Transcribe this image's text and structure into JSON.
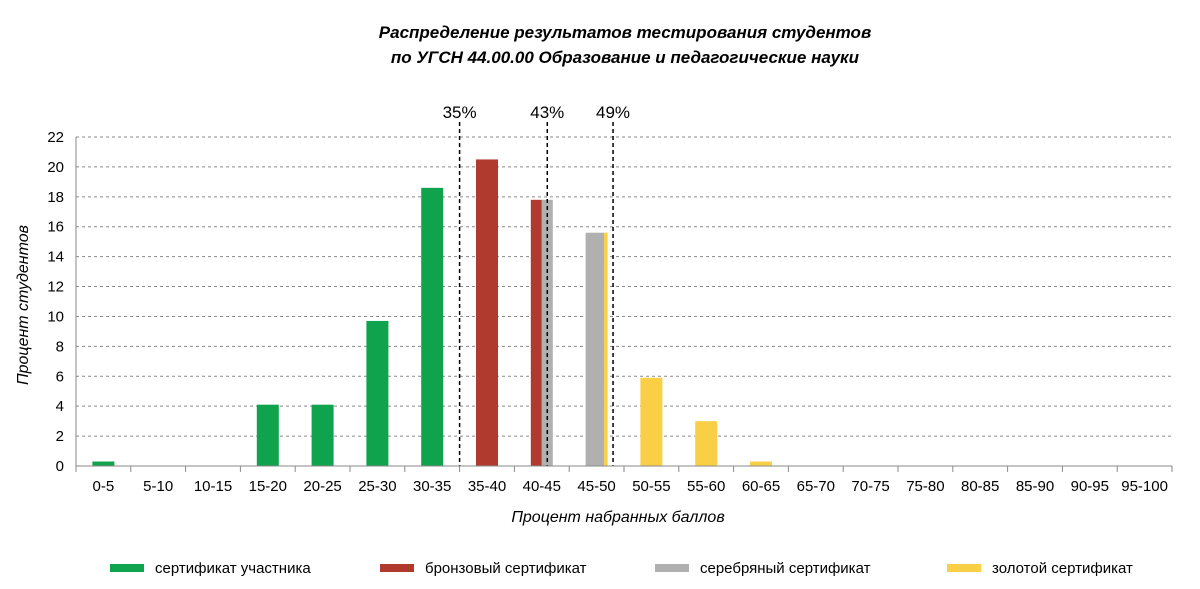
{
  "chart_data": {
    "type": "bar",
    "title_line1": "Распределение результатов тестирования студентов",
    "title_line2": "по УГСН 44.00.00 Образование и педагогические науки",
    "xlabel": "Процент набранных баллов",
    "ylabel": "Процент студентов",
    "ylim": [
      0,
      22
    ],
    "yticks": [
      "0",
      "2",
      "4",
      "6",
      "8",
      "10",
      "12",
      "14",
      "16",
      "18",
      "20",
      "22"
    ],
    "grid": "horizontal dashed",
    "categories": [
      "0-5",
      "5-10",
      "10-15",
      "15-20",
      "20-25",
      "25-30",
      "30-35",
      "35-40",
      "40-45",
      "45-50",
      "50-55",
      "55-60",
      "60-65",
      "65-70",
      "70-75",
      "75-80",
      "80-85",
      "85-90",
      "90-95",
      "95-100"
    ],
    "bars": [
      {
        "value": 0.3,
        "segments": [
          {
            "series": 0,
            "frac": 1
          }
        ]
      },
      {
        "value": 0,
        "segments": []
      },
      {
        "value": 0,
        "segments": []
      },
      {
        "value": 4.1,
        "segments": [
          {
            "series": 0,
            "frac": 1
          }
        ]
      },
      {
        "value": 4.1,
        "segments": [
          {
            "series": 0,
            "frac": 1
          }
        ]
      },
      {
        "value": 9.7,
        "segments": [
          {
            "series": 0,
            "frac": 1
          }
        ]
      },
      {
        "value": 18.6,
        "segments": [
          {
            "series": 0,
            "frac": 1
          }
        ]
      },
      {
        "value": 20.5,
        "segments": [
          {
            "series": 1,
            "frac": 1
          }
        ]
      },
      {
        "value": 17.8,
        "segments": [
          {
            "series": 1,
            "frac": 0.5
          },
          {
            "series": 2,
            "frac": 0.5
          }
        ]
      },
      {
        "value": 15.6,
        "segments": [
          {
            "series": 2,
            "frac": 0.84
          },
          {
            "series": 3,
            "frac": 0.16
          }
        ]
      },
      {
        "value": 5.9,
        "segments": [
          {
            "series": 3,
            "frac": 1
          }
        ]
      },
      {
        "value": 3.0,
        "segments": [
          {
            "series": 3,
            "frac": 1
          }
        ]
      },
      {
        "value": 0.3,
        "segments": [
          {
            "series": 3,
            "frac": 1
          }
        ]
      },
      {
        "value": 0,
        "segments": []
      },
      {
        "value": 0,
        "segments": []
      },
      {
        "value": 0,
        "segments": []
      },
      {
        "value": 0,
        "segments": []
      },
      {
        "value": 0,
        "segments": []
      },
      {
        "value": 0,
        "segments": []
      },
      {
        "value": 0,
        "segments": []
      }
    ],
    "series": [
      {
        "name": "сертификат участника",
        "color": "#0fa34e"
      },
      {
        "name": "бронзовый сертификат",
        "color": "#b03a2e"
      },
      {
        "name": "серебряный сертификат",
        "color": "#b0b0b0"
      },
      {
        "name": "золотой сертификат",
        "color": "#f9cf45"
      }
    ],
    "legend_position": "bottom",
    "threshold_lines": [
      {
        "label": "35%",
        "x_percent": 35
      },
      {
        "label": "43%",
        "x_percent": 43
      },
      {
        "label": "49%",
        "x_percent": 49
      }
    ]
  }
}
